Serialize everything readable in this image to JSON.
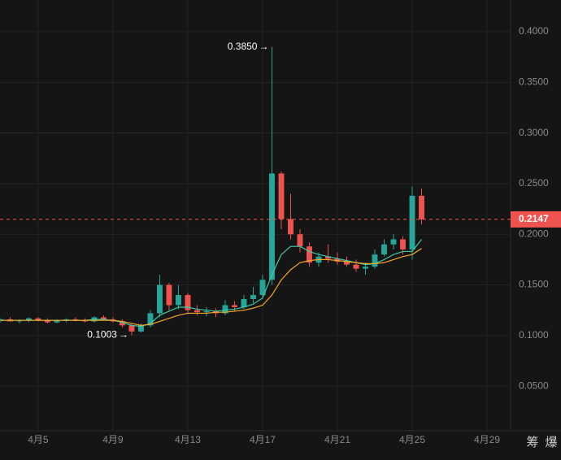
{
  "chart_data": {
    "type": "candlestick",
    "x": [
      3,
      3.5,
      4,
      4.5,
      5,
      5.5,
      6,
      6.5,
      7,
      7.5,
      8,
      8.5,
      9,
      9.5,
      10,
      10.5,
      11,
      11.5,
      12,
      12.5,
      13,
      13.5,
      14,
      14.5,
      15,
      15.5,
      16,
      16.5,
      17,
      17.5,
      18,
      18.5,
      19,
      19.5,
      20,
      20.5,
      21,
      21.5,
      22,
      22.5,
      23,
      23.5,
      24,
      24.5,
      25,
      25.5
    ],
    "open": [
      0.115,
      0.116,
      0.114,
      0.115,
      0.117,
      0.115,
      0.113,
      0.115,
      0.116,
      0.115,
      0.114,
      0.118,
      0.116,
      0.114,
      0.11,
      0.104,
      0.11,
      0.122,
      0.15,
      0.13,
      0.14,
      0.125,
      0.123,
      0.124,
      0.122,
      0.13,
      0.128,
      0.136,
      0.14,
      0.155,
      0.26,
      0.215,
      0.2,
      0.188,
      0.172,
      0.178,
      0.176,
      0.173,
      0.17,
      0.166,
      0.168,
      0.18,
      0.19,
      0.195,
      0.185,
      0.238
    ],
    "high": [
      0.117,
      0.118,
      0.116,
      0.118,
      0.118,
      0.117,
      0.116,
      0.117,
      0.118,
      0.117,
      0.119,
      0.12,
      0.118,
      0.116,
      0.112,
      0.112,
      0.125,
      0.16,
      0.152,
      0.15,
      0.142,
      0.13,
      0.128,
      0.127,
      0.135,
      0.134,
      0.14,
      0.148,
      0.16,
      0.385,
      0.262,
      0.24,
      0.205,
      0.192,
      0.182,
      0.19,
      0.182,
      0.178,
      0.175,
      0.172,
      0.185,
      0.195,
      0.2,
      0.198,
      0.247,
      0.245
    ],
    "low": [
      0.113,
      0.114,
      0.112,
      0.113,
      0.114,
      0.112,
      0.112,
      0.113,
      0.114,
      0.113,
      0.113,
      0.115,
      0.113,
      0.108,
      0.1003,
      0.103,
      0.108,
      0.118,
      0.125,
      0.126,
      0.122,
      0.12,
      0.119,
      0.118,
      0.12,
      0.124,
      0.126,
      0.132,
      0.138,
      0.15,
      0.205,
      0.195,
      0.182,
      0.168,
      0.168,
      0.172,
      0.17,
      0.168,
      0.163,
      0.16,
      0.166,
      0.178,
      0.185,
      0.18,
      0.175,
      0.21
    ],
    "close": [
      0.116,
      0.114,
      0.115,
      0.117,
      0.115,
      0.113,
      0.115,
      0.116,
      0.115,
      0.114,
      0.118,
      0.116,
      0.114,
      0.11,
      0.104,
      0.11,
      0.122,
      0.15,
      0.13,
      0.14,
      0.125,
      0.123,
      0.124,
      0.122,
      0.13,
      0.128,
      0.136,
      0.14,
      0.155,
      0.26,
      0.215,
      0.2,
      0.188,
      0.172,
      0.178,
      0.176,
      0.173,
      0.17,
      0.166,
      0.168,
      0.18,
      0.19,
      0.195,
      0.185,
      0.238,
      0.2147
    ],
    "up_color": "#26a69a",
    "down_color": "#ef5350",
    "ma_lines": [
      {
        "color": "#3ec9a7",
        "values": [
          0.115,
          0.115,
          0.115,
          0.115,
          0.115,
          0.115,
          0.115,
          0.115,
          0.115,
          0.115,
          0.116,
          0.116,
          0.115,
          0.113,
          0.11,
          0.109,
          0.112,
          0.12,
          0.124,
          0.128,
          0.128,
          0.126,
          0.125,
          0.124,
          0.125,
          0.126,
          0.128,
          0.131,
          0.137,
          0.16,
          0.18,
          0.188,
          0.188,
          0.183,
          0.18,
          0.178,
          0.176,
          0.174,
          0.172,
          0.17,
          0.171,
          0.175,
          0.18,
          0.183,
          0.183,
          0.195
        ]
      },
      {
        "color": "#f5a623",
        "values": [
          0.115,
          0.115,
          0.115,
          0.115,
          0.115,
          0.115,
          0.115,
          0.115,
          0.115,
          0.115,
          0.115,
          0.115,
          0.115,
          0.114,
          0.112,
          0.11,
          0.111,
          0.114,
          0.117,
          0.12,
          0.122,
          0.122,
          0.122,
          0.123,
          0.123,
          0.124,
          0.125,
          0.127,
          0.13,
          0.14,
          0.155,
          0.165,
          0.172,
          0.174,
          0.175,
          0.175,
          0.174,
          0.173,
          0.172,
          0.171,
          0.171,
          0.172,
          0.175,
          0.178,
          0.18,
          0.186
        ]
      }
    ],
    "xlim": [
      2.96,
      30.26
    ],
    "xticks": [
      {
        "value": 5,
        "label": "4月5"
      },
      {
        "value": 9,
        "label": "4月9"
      },
      {
        "value": 13,
        "label": "4月13"
      },
      {
        "value": 17,
        "label": "4月17"
      },
      {
        "value": 21,
        "label": "4月21"
      },
      {
        "value": 25,
        "label": "4月25"
      },
      {
        "value": 29,
        "label": "4月29"
      }
    ],
    "ylim": [
      0.006,
      0.4313
    ],
    "yticks": [
      {
        "value": 0.05,
        "label": "0.0500"
      },
      {
        "value": 0.1,
        "label": "0.1000"
      },
      {
        "value": 0.15,
        "label": "0.1500"
      },
      {
        "value": 0.2,
        "label": "0.2000"
      },
      {
        "value": 0.25,
        "label": "0.2500"
      },
      {
        "value": 0.3,
        "label": "0.3000"
      },
      {
        "value": 0.35,
        "label": "0.3500"
      },
      {
        "value": 0.4,
        "label": "0.4000"
      }
    ],
    "grid": true,
    "current_price": 0.2147,
    "annotations": [
      {
        "x": 17.5,
        "value": 0.385,
        "label": "0.3850"
      },
      {
        "x": 10,
        "value": 0.1003,
        "label": "0.1003"
      }
    ],
    "toolbar": [
      "筹",
      "爆"
    ]
  }
}
